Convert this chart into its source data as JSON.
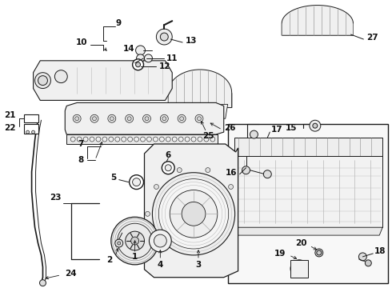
{
  "bg": "#ffffff",
  "lc": "#1a1a1a",
  "tc": "#111111",
  "figsize": [
    4.9,
    3.6
  ],
  "dpi": 100
}
